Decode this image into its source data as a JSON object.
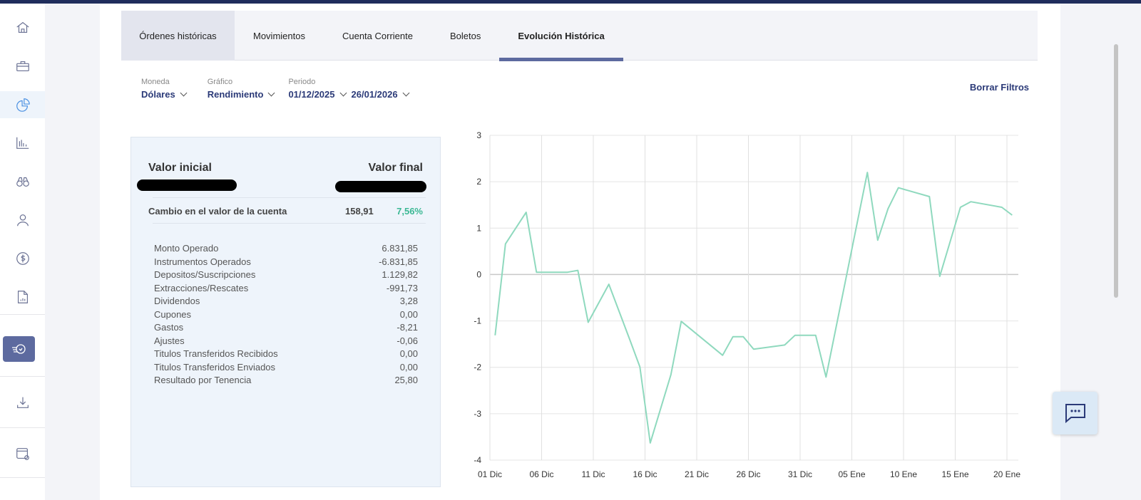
{
  "sidebar": {
    "items": [
      {
        "icon": "home-icon"
      },
      {
        "icon": "briefcase-icon"
      },
      {
        "icon": "pie-chart-icon",
        "selected": true
      },
      {
        "icon": "bar-chart-icon"
      },
      {
        "icon": "binoculars-icon"
      },
      {
        "icon": "user-icon"
      },
      {
        "icon": "dollar-icon"
      },
      {
        "icon": "report-icon"
      },
      {
        "icon": "history-icon",
        "active": true
      },
      {
        "icon": "download-icon"
      },
      {
        "icon": "settings-window-icon"
      }
    ]
  },
  "tabs": [
    {
      "label": "Órdenes históricas"
    },
    {
      "label": "Movimientos"
    },
    {
      "label": "Cuenta Corriente"
    },
    {
      "label": "Boletos"
    },
    {
      "label": "Evolución Histórica",
      "active": true
    }
  ],
  "filters": {
    "moneda": {
      "label": "Moneda",
      "value": "Dólares"
    },
    "grafico": {
      "label": "Gráfico",
      "value": "Rendimiento"
    },
    "periodo": {
      "label": "Periodo",
      "from": "01/12/2025",
      "to": "26/01/2026"
    },
    "clear_label": "Borrar Filtros"
  },
  "summary": {
    "initial_label": "Valor inicial",
    "final_label": "Valor final",
    "change_label": "Cambio en el valor de la cuenta",
    "change_value": "158,91",
    "change_pct": "7,56%",
    "rows": [
      {
        "label": "Monto Operado",
        "value": "6.831,85"
      },
      {
        "label": "Instrumentos Operados",
        "value": "-6.831,85"
      },
      {
        "label": "Depositos/Suscripciones",
        "value": "1.129,82"
      },
      {
        "label": "Extracciones/Rescates",
        "value": "-991,73"
      },
      {
        "label": "Dividendos",
        "value": "3,28"
      },
      {
        "label": "Cupones",
        "value": "0,00"
      },
      {
        "label": "Gastos",
        "value": "-8,21"
      },
      {
        "label": "Ajustes",
        "value": "-0,06"
      },
      {
        "label": "Titulos Transferidos Recibidos",
        "value": "0,00"
      },
      {
        "label": "Titulos Transferidos Enviados",
        "value": "0,00"
      },
      {
        "label": "Resultado por Tenencia",
        "value": "25,80"
      }
    ]
  },
  "colors": {
    "accent": "#5d6a9f",
    "line": "#8fd9be",
    "positive": "#3bb894",
    "brand": "#2b3a78"
  },
  "chart_data": {
    "type": "line",
    "grid": true,
    "ylim": [
      -4,
      3
    ],
    "yticks": [
      "3",
      "2",
      "1",
      "0",
      "-1",
      "-2",
      "-3",
      "-4"
    ],
    "xticks": [
      "01 Dic",
      "06 Dic",
      "11 Dic",
      "16 Dic",
      "21 Dic",
      "26 Dic",
      "31 Dic",
      "05 Ene",
      "10 Ene",
      "15 Ene",
      "20 Ene"
    ],
    "series": [
      {
        "x": [
          "2025-12-01",
          "2025-12-02",
          "2025-12-04",
          "2025-12-05",
          "2025-12-08",
          "2025-12-09",
          "2025-12-10",
          "2025-12-12",
          "2025-12-14",
          "2025-12-15",
          "2025-12-16",
          "2025-12-18",
          "2025-12-19",
          "2025-12-23",
          "2025-12-24",
          "2025-12-25",
          "2025-12-26",
          "2025-12-29",
          "2025-12-30",
          "2026-01-01",
          "2026-01-02",
          "2026-01-06",
          "2026-01-07",
          "2026-01-08",
          "2026-01-09",
          "2026-01-12",
          "2026-01-13",
          "2026-01-15",
          "2026-01-16",
          "2026-01-19",
          "2026-01-20"
        ],
        "y": [
          -1.31,
          0.66,
          1.34,
          0.05,
          0.05,
          0.09,
          -1.03,
          -0.21,
          -1.39,
          -1.99,
          -3.63,
          -2.16,
          -1.01,
          -1.74,
          -1.34,
          -1.34,
          -1.61,
          -1.52,
          -1.31,
          -1.31,
          -2.21,
          2.2,
          0.74,
          1.42,
          1.87,
          1.68,
          -0.04,
          1.45,
          1.57,
          1.45,
          1.28
        ]
      }
    ]
  }
}
